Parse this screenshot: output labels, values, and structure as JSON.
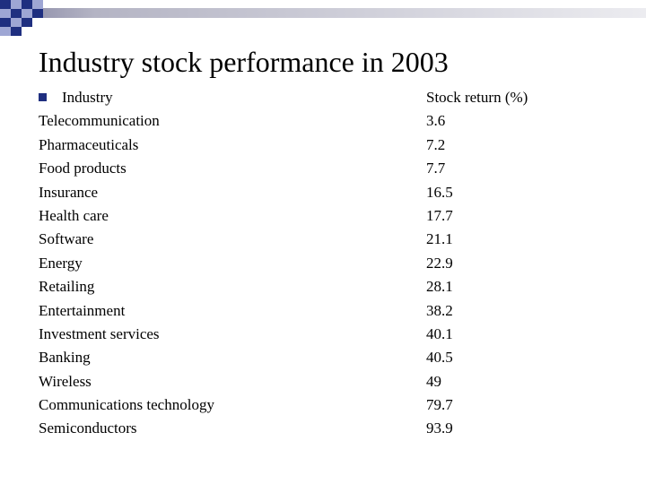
{
  "slide": {
    "title": "Industry stock performance in 2003",
    "accent_color": "#1F2F80",
    "stripe_color": "#C8C8D2",
    "bullet_icon": "square-bullet-icon"
  },
  "table": {
    "headers": [
      "Industry",
      "Stock return (%)"
    ],
    "rows": [
      {
        "industry": "Telecommunication",
        "return": "3.6"
      },
      {
        "industry": "Pharmaceuticals",
        "return": "7.2"
      },
      {
        "industry": "Food products",
        "return": "7.7"
      },
      {
        "industry": "Insurance",
        "return": "16.5"
      },
      {
        "industry": "Health care",
        "return": "17.7"
      },
      {
        "industry": "Software",
        "return": "21.1"
      },
      {
        "industry": "Energy",
        "return": "22.9"
      },
      {
        "industry": "Retailing",
        "return": "28.1"
      },
      {
        "industry": "Entertainment",
        "return": "38.2"
      },
      {
        "industry": "Investment services",
        "return": "40.1"
      },
      {
        "industry": "Banking",
        "return": "40.5"
      },
      {
        "industry": "Wireless",
        "return": "49"
      },
      {
        "industry": "Communications technology",
        "return": "79.7"
      },
      {
        "industry": "Semiconductors",
        "return": "93.9"
      }
    ]
  }
}
